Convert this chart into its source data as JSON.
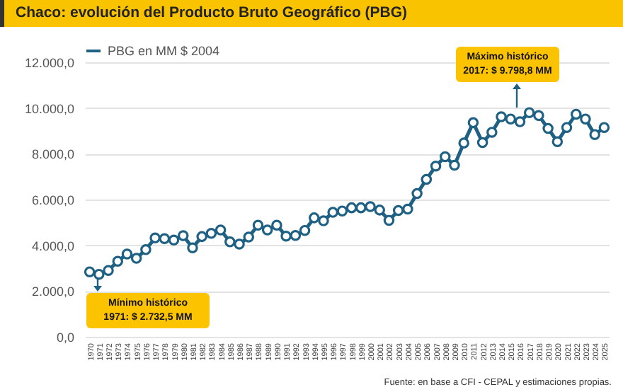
{
  "chart_data": {
    "type": "line",
    "title": "Chaco: evolución del Producto Bruto Geográfico (PBG)",
    "categories": [
      "1970",
      "1971",
      "1972",
      "1973",
      "1974",
      "1975",
      "1976",
      "1977",
      "1978",
      "1979",
      "1980",
      "1981",
      "1982",
      "1983",
      "1984",
      "1985",
      "1986",
      "1987",
      "1988",
      "1989",
      "1990",
      "1991",
      "1992",
      "1993",
      "1994",
      "1995",
      "1996",
      "1997",
      "1998",
      "1999",
      "2000",
      "2001",
      "2002",
      "2003",
      "2004",
      "2005",
      "2006",
      "2007",
      "2008",
      "2009",
      "2010",
      "2011",
      "2012",
      "2013",
      "2014",
      "2015",
      "2016",
      "2017",
      "2018",
      "2019",
      "2020",
      "2021",
      "2022",
      "2023",
      "2024",
      "2025"
    ],
    "series": [
      {
        "name": "PBG en MM $ 2004",
        "color": "#1f6184",
        "values": [
          2840,
          2732.5,
          2900,
          3300,
          3620,
          3430,
          3810,
          4320,
          4290,
          4230,
          4420,
          3890,
          4380,
          4520,
          4670,
          4150,
          4050,
          4360,
          4880,
          4670,
          4880,
          4400,
          4430,
          4650,
          5200,
          5070,
          5440,
          5500,
          5640,
          5640,
          5690,
          5540,
          5090,
          5520,
          5580,
          6260,
          6880,
          7460,
          7870,
          7500,
          8470,
          9360,
          8490,
          8940,
          9620,
          9520,
          9400,
          9798.8,
          9670,
          9110,
          8530,
          9150,
          9730,
          9520,
          8840,
          9150
        ]
      }
    ],
    "ylim": [
      0,
      12000
    ],
    "yticks": [
      {
        "value": 0,
        "label": "0,0"
      },
      {
        "value": 2000,
        "label": "2.000,0"
      },
      {
        "value": 4000,
        "label": "4.000,0"
      },
      {
        "value": 6000,
        "label": "6.000,0"
      },
      {
        "value": 8000,
        "label": "8.000,0"
      },
      {
        "value": 10000,
        "label": "10.000,0"
      },
      {
        "value": 12000,
        "label": "12.000,0"
      }
    ],
    "grid": "y",
    "legend": "top",
    "marker": "circle",
    "line_style": "solid",
    "annotations": [
      "Mínimo histórico\n1971: $ 2.732,5 MM",
      "Máximo histórico\n2017: $ 9.798,8 MM",
      "Fuente: en base a CFI - CEPAL y estimaciones propias."
    ]
  }
}
